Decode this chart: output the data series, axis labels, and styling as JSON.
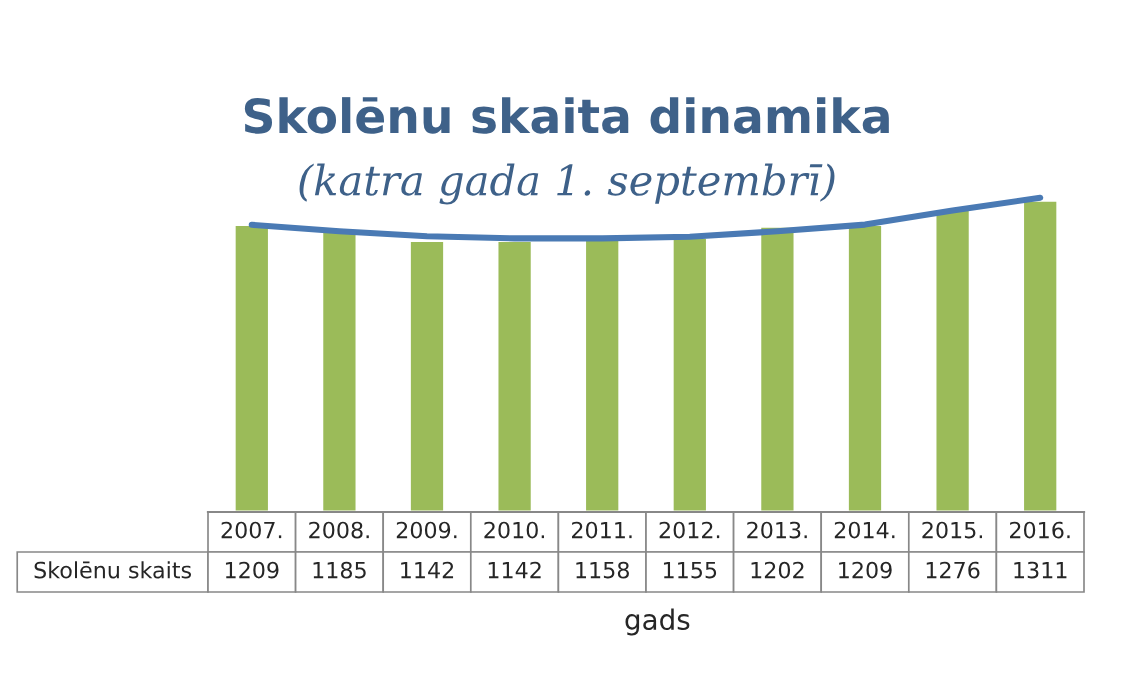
{
  "chart_data": {
    "type": "bar",
    "title": "Skolēnu skaita dinamika",
    "subtitle": "(katra gada 1. septembrī)",
    "xlabel": "gads",
    "categories": [
      "2007.",
      "2008.",
      "2009.",
      "2010.",
      "2011.",
      "2012.",
      "2013.",
      "2014.",
      "2015.",
      "2016."
    ],
    "series": [
      {
        "name": "Skolēnu skaits",
        "color": "#9bbb59",
        "values": [
          1209,
          1185,
          1142,
          1142,
          1158,
          1155,
          1202,
          1209,
          1276,
          1311
        ],
        "value_labels": [
          "1209",
          "1185",
          "1142",
          "1142",
          "1158",
          "1155",
          "1202",
          "1209",
          "1276",
          "1311"
        ]
      },
      {
        "type": "line",
        "color": "#4a7ab4",
        "values": [
          1208,
          1181,
          1160,
          1151,
          1151,
          1158,
          1181,
          1209,
          1268,
          1322
        ]
      }
    ],
    "tick_labels": "x"
  }
}
